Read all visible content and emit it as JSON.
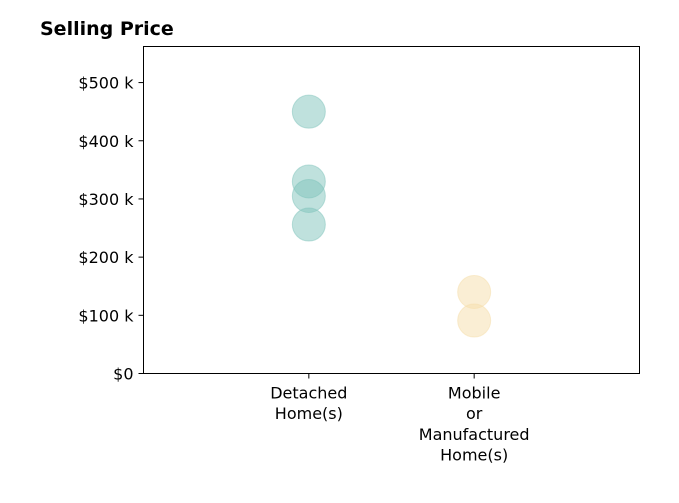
{
  "chart_data": {
    "type": "scatter",
    "title": "Selling Price",
    "xlabel": "",
    "ylabel": "",
    "categories": [
      [
        "Detached",
        "Home(s)"
      ],
      [
        "Mobile",
        "or",
        "Manufactured",
        "Home(s)"
      ]
    ],
    "series": [
      {
        "category_index": 0,
        "color": "#80c4bc",
        "values": [
          450000,
          330000,
          305000,
          256000
        ]
      },
      {
        "category_index": 1,
        "color": "#f5deaa",
        "values": [
          140000,
          91000
        ]
      }
    ],
    "xlim": [
      -1,
      2
    ],
    "ylim": [
      0,
      562000
    ],
    "y_ticks": [
      0,
      100000,
      200000,
      300000,
      400000,
      500000
    ],
    "y_tick_labels": [
      "$0",
      "$100 k",
      "$200 k",
      "$300 k",
      "$400 k",
      "$500 k"
    ],
    "grid": false,
    "legend": "none",
    "marker_opacity": 0.5
  }
}
